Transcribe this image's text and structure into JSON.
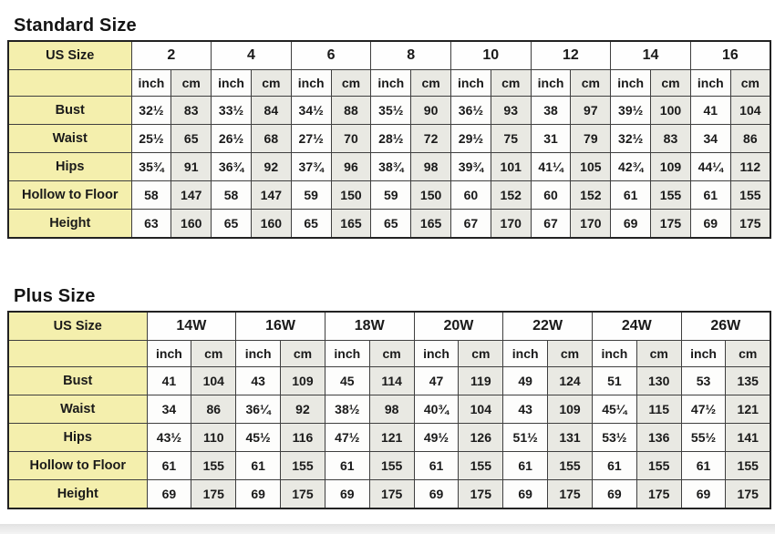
{
  "chart_data": [
    {
      "type": "table",
      "title": "Standard Size",
      "corner_label": "US Size",
      "units": [
        "inch",
        "cm"
      ],
      "sizes": [
        "2",
        "4",
        "6",
        "8",
        "10",
        "12",
        "14",
        "16"
      ],
      "rows": [
        {
          "label": "Bust",
          "values": [
            [
              "32½",
              "83"
            ],
            [
              "33½",
              "84"
            ],
            [
              "34½",
              "88"
            ],
            [
              "35½",
              "90"
            ],
            [
              "36½",
              "93"
            ],
            [
              "38",
              "97"
            ],
            [
              "39½",
              "100"
            ],
            [
              "41",
              "104"
            ]
          ]
        },
        {
          "label": "Waist",
          "values": [
            [
              "25½",
              "65"
            ],
            [
              "26½",
              "68"
            ],
            [
              "27½",
              "70"
            ],
            [
              "28½",
              "72"
            ],
            [
              "29½",
              "75"
            ],
            [
              "31",
              "79"
            ],
            [
              "32½",
              "83"
            ],
            [
              "34",
              "86"
            ]
          ]
        },
        {
          "label": "Hips",
          "values": [
            [
              "35¾",
              "91"
            ],
            [
              "36¾",
              "92"
            ],
            [
              "37¾",
              "96"
            ],
            [
              "38¾",
              "98"
            ],
            [
              "39¾",
              "101"
            ],
            [
              "41¼",
              "105"
            ],
            [
              "42¾",
              "109"
            ],
            [
              "44¼",
              "112"
            ]
          ]
        },
        {
          "label": "Hollow to Floor",
          "values": [
            [
              "58",
              "147"
            ],
            [
              "58",
              "147"
            ],
            [
              "59",
              "150"
            ],
            [
              "59",
              "150"
            ],
            [
              "60",
              "152"
            ],
            [
              "60",
              "152"
            ],
            [
              "61",
              "155"
            ],
            [
              "61",
              "155"
            ]
          ]
        },
        {
          "label": "Height",
          "values": [
            [
              "63",
              "160"
            ],
            [
              "65",
              "160"
            ],
            [
              "65",
              "165"
            ],
            [
              "65",
              "165"
            ],
            [
              "67",
              "170"
            ],
            [
              "67",
              "170"
            ],
            [
              "69",
              "175"
            ],
            [
              "69",
              "175"
            ]
          ]
        }
      ]
    },
    {
      "type": "table",
      "title": "Plus Size",
      "corner_label": "US Size",
      "units": [
        "inch",
        "cm"
      ],
      "sizes": [
        "14W",
        "16W",
        "18W",
        "20W",
        "22W",
        "24W",
        "26W"
      ],
      "rows": [
        {
          "label": "Bust",
          "values": [
            [
              "41",
              "104"
            ],
            [
              "43",
              "109"
            ],
            [
              "45",
              "114"
            ],
            [
              "47",
              "119"
            ],
            [
              "49",
              "124"
            ],
            [
              "51",
              "130"
            ],
            [
              "53",
              "135"
            ]
          ]
        },
        {
          "label": "Waist",
          "values": [
            [
              "34",
              "86"
            ],
            [
              "36¼",
              "92"
            ],
            [
              "38½",
              "98"
            ],
            [
              "40¾",
              "104"
            ],
            [
              "43",
              "109"
            ],
            [
              "45¼",
              "115"
            ],
            [
              "47½",
              "121"
            ]
          ]
        },
        {
          "label": "Hips",
          "values": [
            [
              "43½",
              "110"
            ],
            [
              "45½",
              "116"
            ],
            [
              "47½",
              "121"
            ],
            [
              "49½",
              "126"
            ],
            [
              "51½",
              "131"
            ],
            [
              "53½",
              "136"
            ],
            [
              "55½",
              "141"
            ]
          ]
        },
        {
          "label": "Hollow to Floor",
          "values": [
            [
              "61",
              "155"
            ],
            [
              "61",
              "155"
            ],
            [
              "61",
              "155"
            ],
            [
              "61",
              "155"
            ],
            [
              "61",
              "155"
            ],
            [
              "61",
              "155"
            ],
            [
              "61",
              "155"
            ]
          ]
        },
        {
          "label": "Height",
          "values": [
            [
              "69",
              "175"
            ],
            [
              "69",
              "175"
            ],
            [
              "69",
              "175"
            ],
            [
              "69",
              "175"
            ],
            [
              "69",
              "175"
            ],
            [
              "69",
              "175"
            ],
            [
              "69",
              "175"
            ]
          ]
        }
      ]
    }
  ],
  "colors": {
    "label_cell_bg": "#f4efad",
    "cm_cell_bg": "#e9e9e3",
    "inch_cell_bg": "#fdfdfc",
    "border": "#3f3f3f",
    "text": "#1a1a1a"
  }
}
